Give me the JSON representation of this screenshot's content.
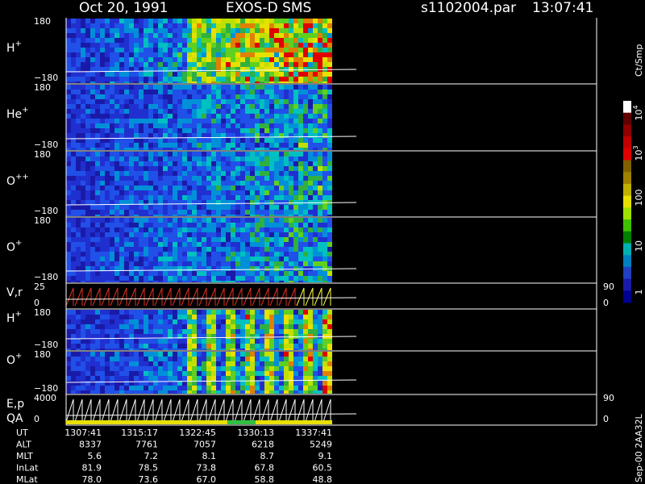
{
  "header": {
    "date": "Oct 20, 1991",
    "instrument": "EXOS-D SMS",
    "file": "s1102004.par",
    "time": "13:07:41"
  },
  "panels": [
    {
      "label": "H",
      "sup": "+",
      "top": "180",
      "bottom": "−180"
    },
    {
      "label": "He",
      "sup": "+",
      "top": "180",
      "bottom": "−180"
    },
    {
      "label": "O",
      "sup": "++",
      "top": "180",
      "bottom": "−180"
    },
    {
      "label": "O",
      "sup": "+",
      "top": "180",
      "bottom": "−180"
    },
    {
      "label": "V,r",
      "top": "25",
      "bottom": "0",
      "right_top": "90",
      "right_bottom": "0"
    },
    {
      "label": "H",
      "sup": "+",
      "top": "180",
      "bottom": "−180"
    },
    {
      "label": "O",
      "sup": "+",
      "top": "180",
      "bottom": "−180"
    },
    {
      "label": "E,p",
      "label2": "QA",
      "top": "4000",
      "bottom": "0",
      "right_top": "90",
      "right_bottom": "0"
    }
  ],
  "colorbar": {
    "unit": "Ct/Smp",
    "labels": [
      {
        "base": "10",
        "sup": "4"
      },
      {
        "base": "10",
        "sup": "3"
      },
      "100",
      "10",
      "1"
    ]
  },
  "table": {
    "rows": [
      [
        "UT",
        "1307:41",
        "1315:17",
        "1322:45",
        "1330:13",
        "1337:41"
      ],
      [
        "ALT",
        "8337",
        "7761",
        "7057",
        "6218",
        "5249"
      ],
      [
        "MLT",
        "5.6",
        "7.2",
        "8.1",
        "8.7",
        "9.1"
      ],
      [
        "InLat",
        "81.9",
        "78.5",
        "73.8",
        "67.8",
        "60.5"
      ],
      [
        "MLat",
        "78.0",
        "73.6",
        "67.0",
        "58.8",
        "48.8"
      ]
    ]
  },
  "footer": "Sep-00 2AA32L"
}
